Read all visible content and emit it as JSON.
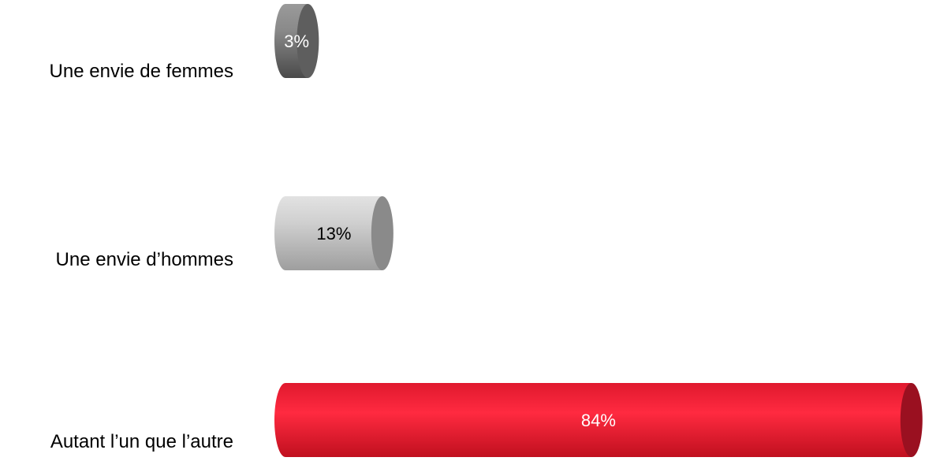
{
  "chart_data": {
    "type": "bar",
    "orientation": "horizontal",
    "style": "3d-cylinder",
    "categories": [
      "Une envie de femmes",
      "Une envie d’hommes",
      "Autant l’un que l’autre"
    ],
    "values": [
      3,
      13,
      84
    ],
    "value_labels": [
      "3%",
      "13%",
      "84%"
    ],
    "unit": "%",
    "xlim": [
      0,
      100
    ],
    "colors": [
      "#7a7a7a",
      "#c4c4c4",
      "#ee2038"
    ],
    "value_label_colors": [
      "#ffffff",
      "#000000",
      "#ffffff"
    ],
    "title": "",
    "xlabel": "",
    "ylabel": "",
    "grid": false,
    "legend": "none"
  }
}
